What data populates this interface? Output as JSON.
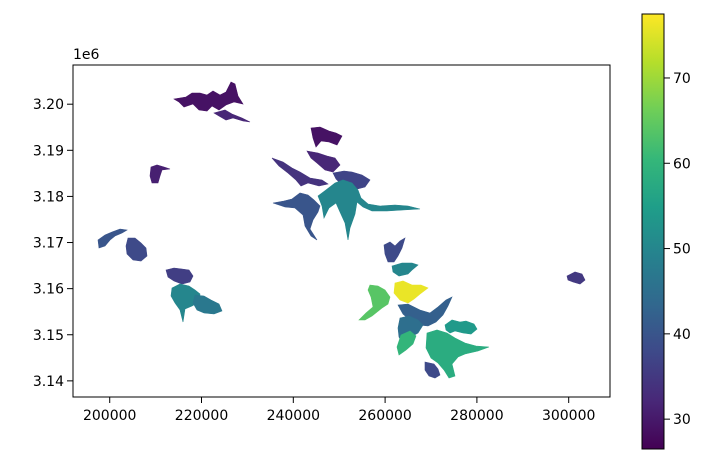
{
  "chart_data": {
    "type": "choropleth",
    "title": "",
    "xlabel": "",
    "ylabel": "",
    "x_ticks": [
      "200000",
      "220000",
      "240000",
      "260000",
      "280000",
      "300000"
    ],
    "x_tick_values": [
      200000,
      220000,
      240000,
      260000,
      280000,
      300000
    ],
    "y_ticks": [
      "3.14",
      "3.15",
      "3.16",
      "3.17",
      "3.18",
      "3.19",
      "3.20"
    ],
    "y_tick_values": [
      3.14,
      3.15,
      3.16,
      3.17,
      3.18,
      3.19,
      3.2
    ],
    "y_offset_label": "1e6",
    "xlim": [
      192000,
      309000
    ],
    "ylim": [
      3.1365,
      3.2085
    ],
    "grid": false,
    "colorbar": {
      "colormap": "viridis",
      "range": [
        26.5,
        77.5
      ],
      "ticks": [
        "30",
        "40",
        "50",
        "60",
        "70"
      ],
      "tick_values": [
        30,
        40,
        50,
        60,
        70
      ],
      "colors": [
        "#440154",
        "#482878",
        "#3e4989",
        "#31688e",
        "#26828e",
        "#1f9e89",
        "#35b779",
        "#6ece58",
        "#b5de2b",
        "#fde725"
      ]
    },
    "regions": [
      {
        "x": 221000,
        "y": 3.2005,
        "value": 29
      },
      {
        "x": 227000,
        "y": 3.197,
        "value": 32
      },
      {
        "x": 210500,
        "y": 3.184,
        "value": 31
      },
      {
        "x": 204000,
        "y": 3.17,
        "value": 40
      },
      {
        "x": 208000,
        "y": 3.168,
        "value": 38
      },
      {
        "x": 215000,
        "y": 3.162,
        "value": 36
      },
      {
        "x": 218000,
        "y": 3.157,
        "value": 50
      },
      {
        "x": 222000,
        "y": 3.1555,
        "value": 47
      },
      {
        "x": 246500,
        "y": 3.193,
        "value": 29
      },
      {
        "x": 250500,
        "y": 3.1865,
        "value": 32
      },
      {
        "x": 243500,
        "y": 3.1825,
        "value": 34
      },
      {
        "x": 247000,
        "y": 3.176,
        "value": 40
      },
      {
        "x": 254000,
        "y": 3.1835,
        "value": 37
      },
      {
        "x": 259000,
        "y": 3.1795,
        "value": 50
      },
      {
        "x": 264000,
        "y": 3.1765,
        "value": 50
      },
      {
        "x": 264000,
        "y": 3.1645,
        "value": 76
      },
      {
        "x": 264000,
        "y": 3.1585,
        "value": 64
      },
      {
        "x": 258000,
        "y": 3.1565,
        "value": 42
      },
      {
        "x": 270000,
        "y": 3.153,
        "value": 54
      },
      {
        "x": 275000,
        "y": 3.151,
        "value": 45
      },
      {
        "x": 266000,
        "y": 3.149,
        "value": 58
      },
      {
        "x": 274000,
        "y": 3.1455,
        "value": 60
      },
      {
        "x": 264000,
        "y": 3.146,
        "value": 38
      },
      {
        "x": 270500,
        "y": 3.1415,
        "value": 35
      },
      {
        "x": 301000,
        "y": 3.162,
        "value": 38
      }
    ]
  }
}
